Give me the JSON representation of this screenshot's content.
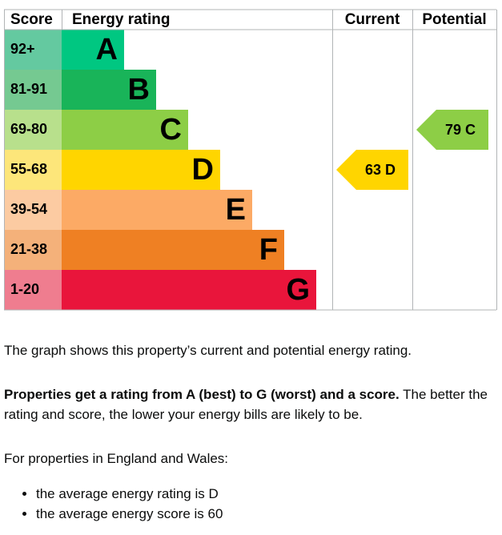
{
  "header": {
    "score": "Score",
    "rating": "Energy rating",
    "current": "Current",
    "potential": "Potential"
  },
  "bands": [
    {
      "score": "92+",
      "letter": "A",
      "color": "#00c781",
      "score_color": "#64c9a0"
    },
    {
      "score": "81-91",
      "letter": "B",
      "color": "#19b459",
      "score_color": "#75c991"
    },
    {
      "score": "69-80",
      "letter": "C",
      "color": "#8dce46",
      "score_color": "#b8e08c"
    },
    {
      "score": "55-68",
      "letter": "D",
      "color": "#ffd500",
      "score_color": "#fde67a"
    },
    {
      "score": "39-54",
      "letter": "E",
      "color": "#fcaa65",
      "score_color": "#fccba2"
    },
    {
      "score": "21-38",
      "letter": "F",
      "color": "#ef8023",
      "score_color": "#f4b17a"
    },
    {
      "score": "1-20",
      "letter": "G",
      "color": "#e9153b",
      "score_color": "#ef7d8f"
    }
  ],
  "current": {
    "score": 63,
    "letter": "D"
  },
  "potential": {
    "score": 79,
    "letter": "C"
  },
  "text": {
    "summary": "The graph shows this property’s current and potential energy rating.",
    "bold": "Properties get a rating from A (best) to G (worst) and a score.",
    "rest": "The better the rating and score, the lower your energy bills are likely to be.",
    "intro": "For properties in England and Wales:",
    "bullets": [
      "the average energy rating is D",
      "the average energy score is 60"
    ]
  }
}
